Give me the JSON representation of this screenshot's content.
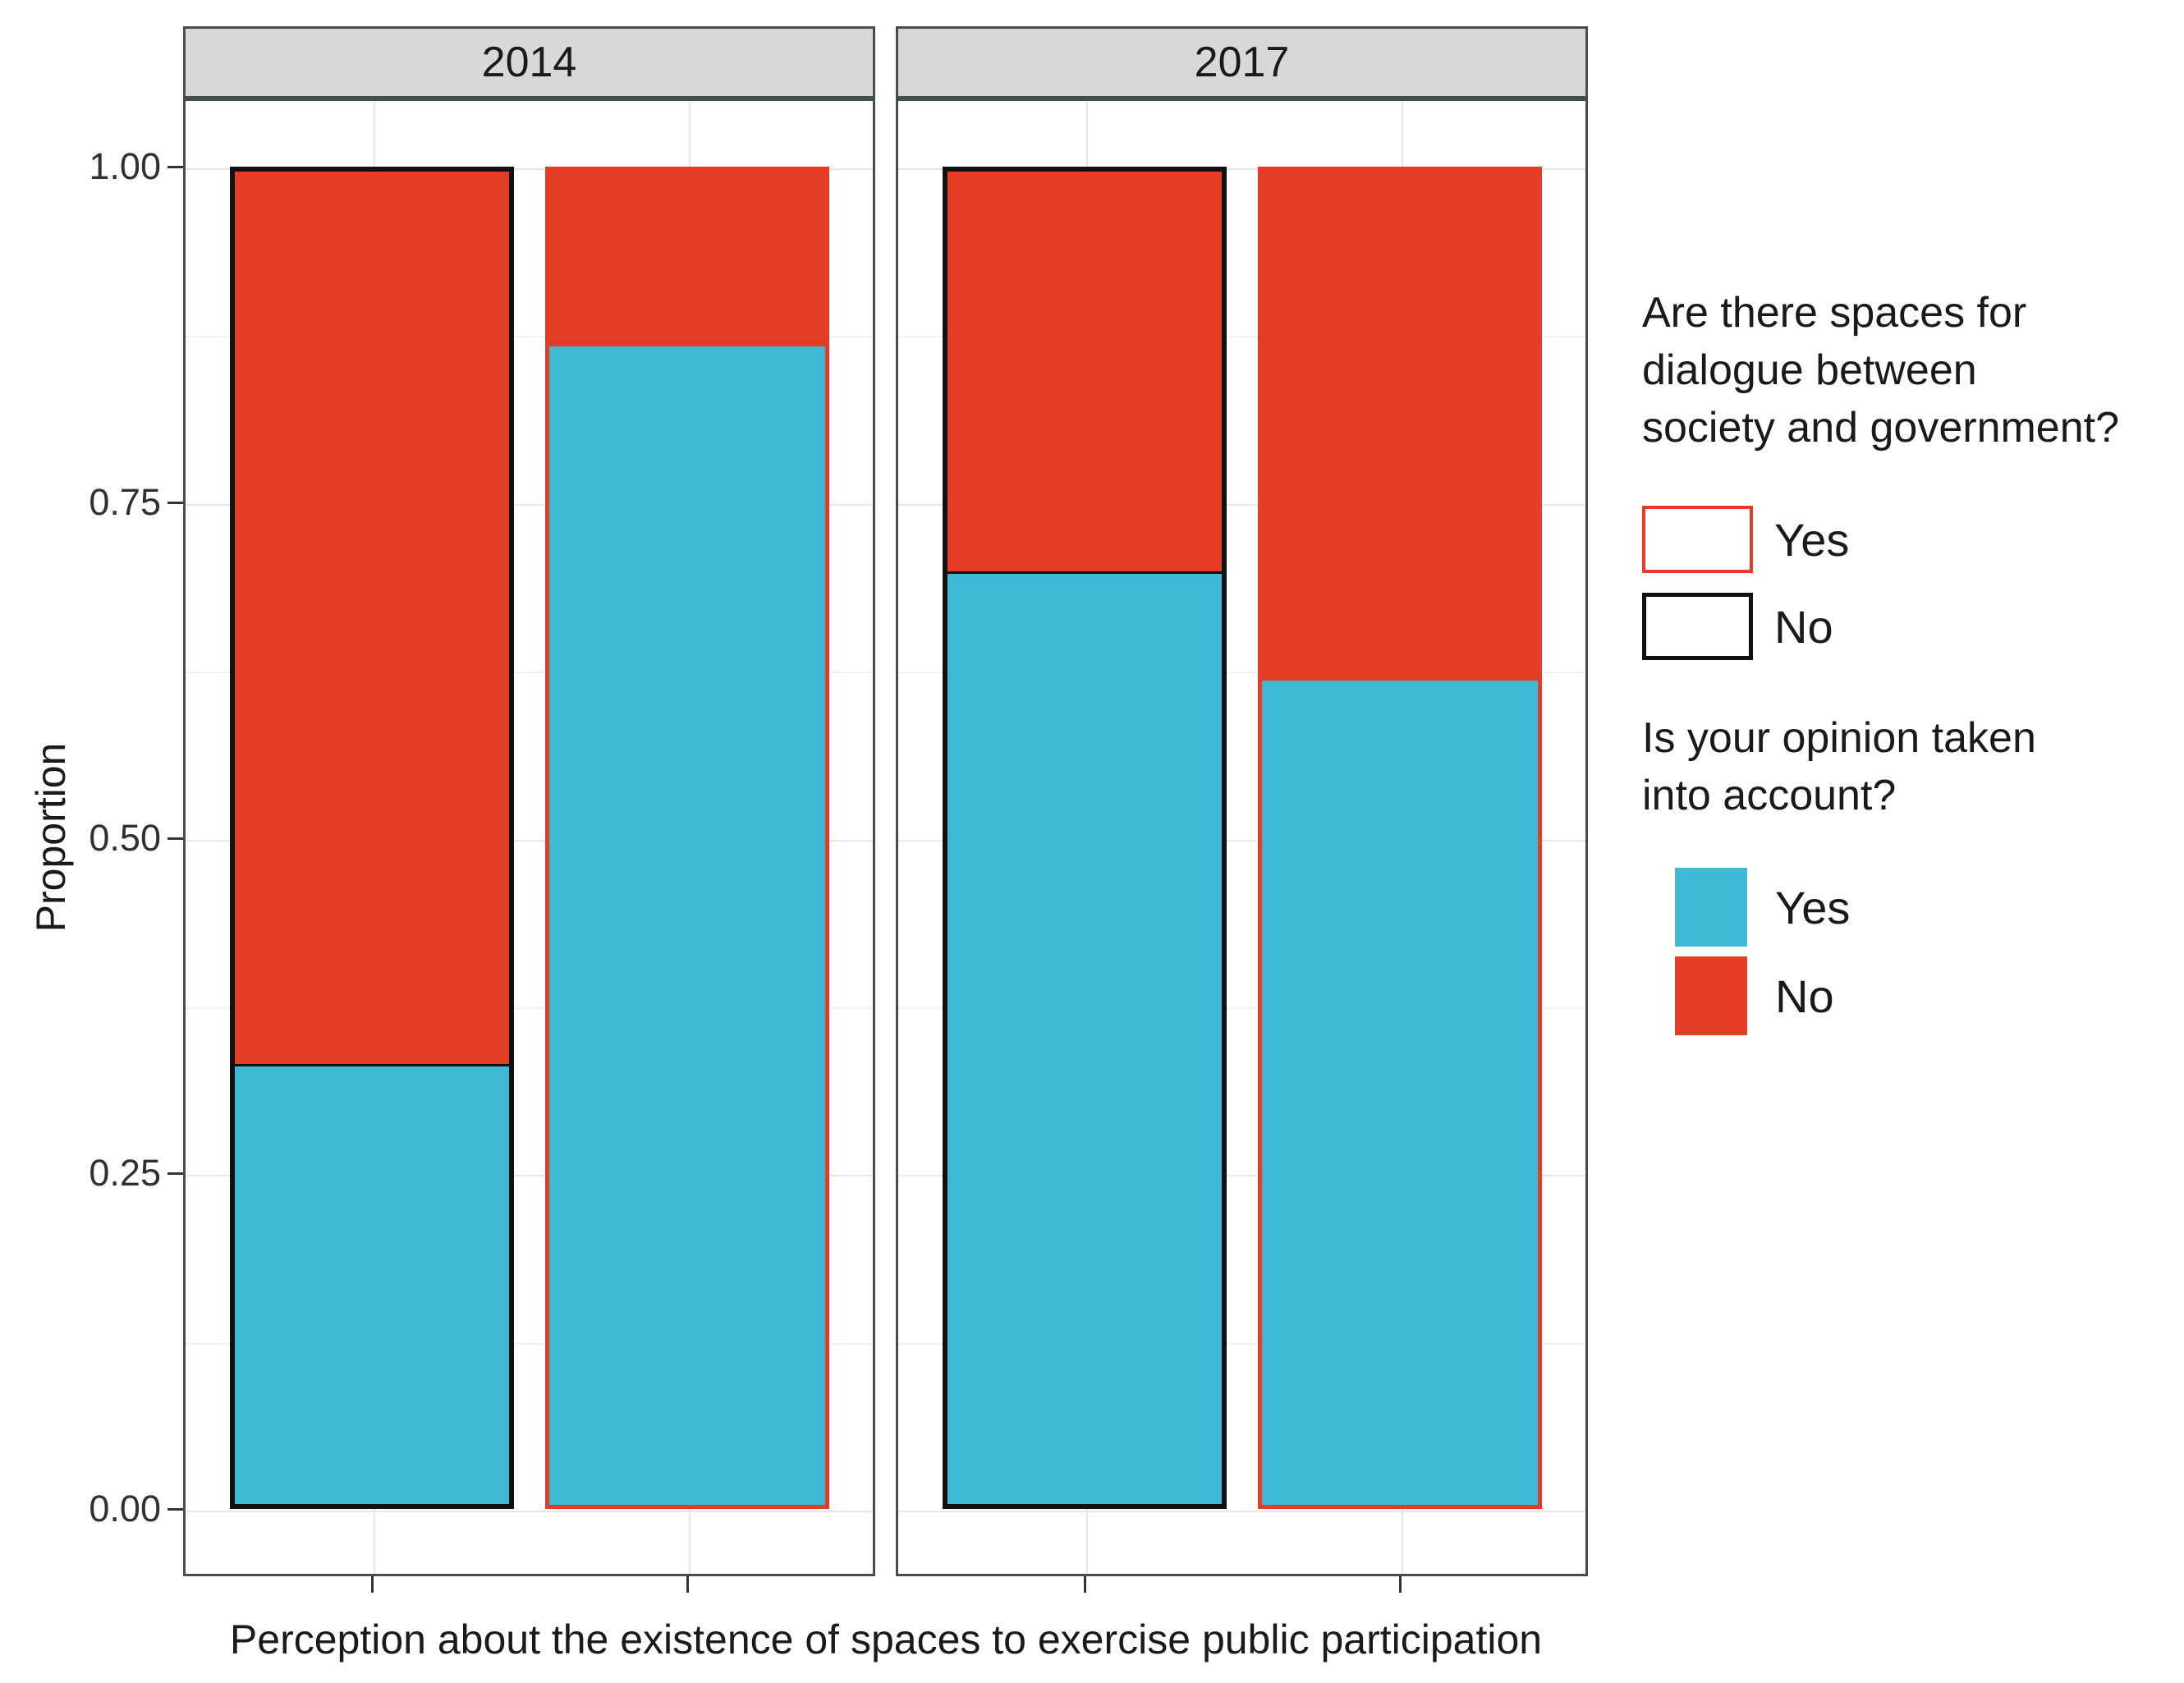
{
  "chart_data": {
    "type": "bar",
    "stacked": true,
    "orientation": "vertical",
    "facets": [
      "2014",
      "2017"
    ],
    "ylabel": "Proportion",
    "xlabel": "Perception about the existence of spaces to exercise public participation",
    "ylim": [
      0,
      1
    ],
    "y_major_ticks": [
      0,
      0.25,
      0.5,
      0.75,
      1
    ],
    "y_tick_labels": [
      "0.00",
      "0.25",
      "0.50",
      "0.75",
      "1.00"
    ],
    "y_minor_gridlines": [
      0.125,
      0.375,
      0.625,
      0.875
    ],
    "grid": true,
    "x_tick_labels": [],
    "bars": [
      {
        "facet": "2014",
        "dialogue_spaces": "No",
        "outline": "black",
        "opinion_yes": 0.33,
        "opinion_no": 0.67
      },
      {
        "facet": "2014",
        "dialogue_spaces": "Yes",
        "outline": "red",
        "opinion_yes": 0.87,
        "opinion_no": 0.13
      },
      {
        "facet": "2017",
        "dialogue_spaces": "No",
        "outline": "black",
        "opinion_yes": 0.7,
        "opinion_no": 0.3
      },
      {
        "facet": "2017",
        "dialogue_spaces": "Yes",
        "outline": "red",
        "opinion_yes": 0.62,
        "opinion_no": 0.38
      }
    ]
  },
  "legends": [
    {
      "title_lines": [
        "Are there spaces for",
        "dialogue between",
        "society and government?"
      ],
      "items": [
        {
          "label": "Yes",
          "swatch": "outline-yes"
        },
        {
          "label": "No",
          "swatch": "outline-no"
        }
      ]
    },
    {
      "title_lines": [
        "Is your opinion taken",
        "into account?"
      ],
      "items": [
        {
          "label": "Yes",
          "swatch": "fill-yes"
        },
        {
          "label": "No",
          "swatch": "fill-no"
        }
      ]
    }
  ],
  "colors": {
    "opinion_yes_fill": "#3fb8d5",
    "opinion_no_fill": "#e43c25",
    "outline_yes": "#e43c25",
    "outline_no": "#111111",
    "strip_bg": "#d8d8d8",
    "frame": "#454d4d",
    "grid_major": "#e7e7e7",
    "grid_minor": "#f2f2f2",
    "tick": "#333333"
  }
}
